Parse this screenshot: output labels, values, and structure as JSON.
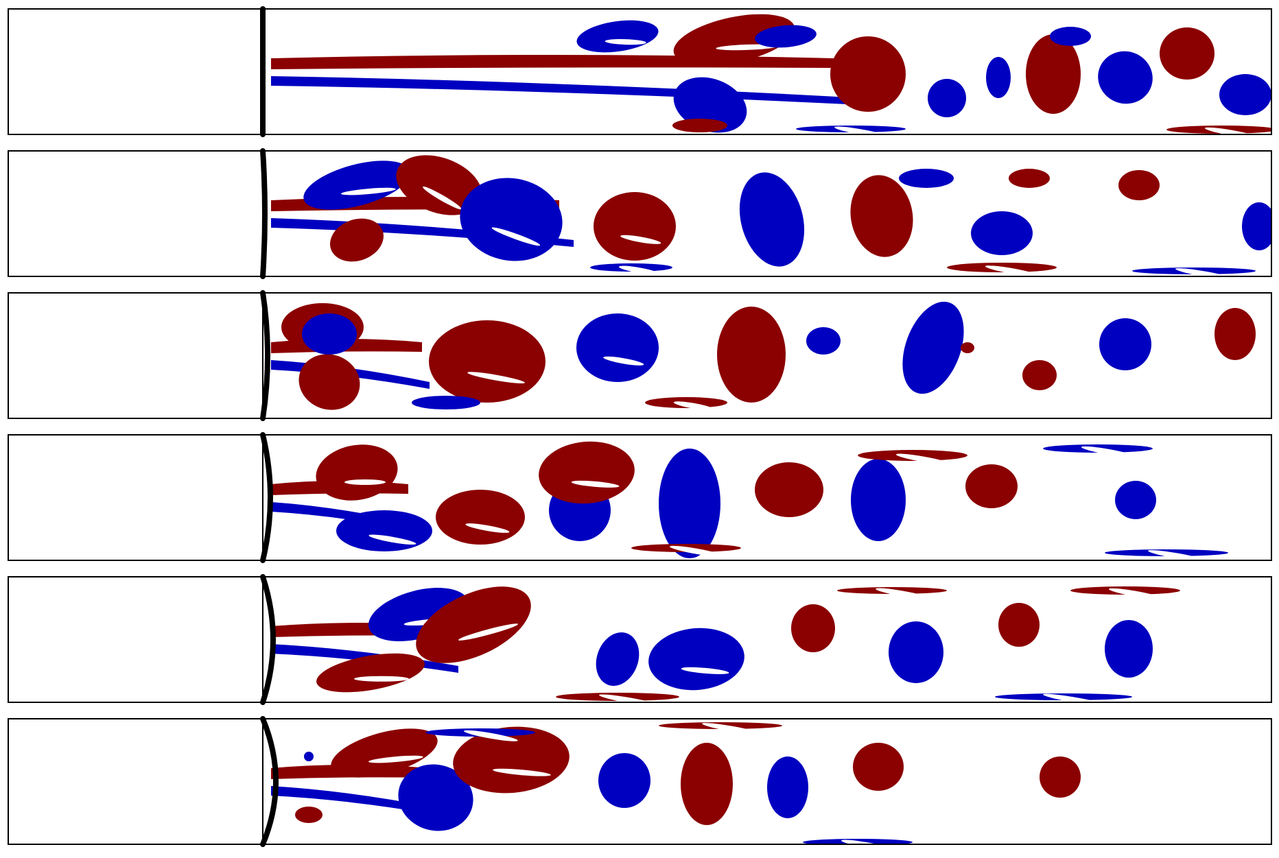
{
  "figure": {
    "panel_count": 6,
    "colors": {
      "positive_vorticity": "#8B0000",
      "negative_vorticity": "#0000C0",
      "background": "#FFFFFF",
      "plate": "#000000",
      "frame": "#000000"
    },
    "plate_deflection_levels": [
      0.0,
      0.15,
      0.35,
      0.55,
      0.75,
      0.95
    ]
  }
}
